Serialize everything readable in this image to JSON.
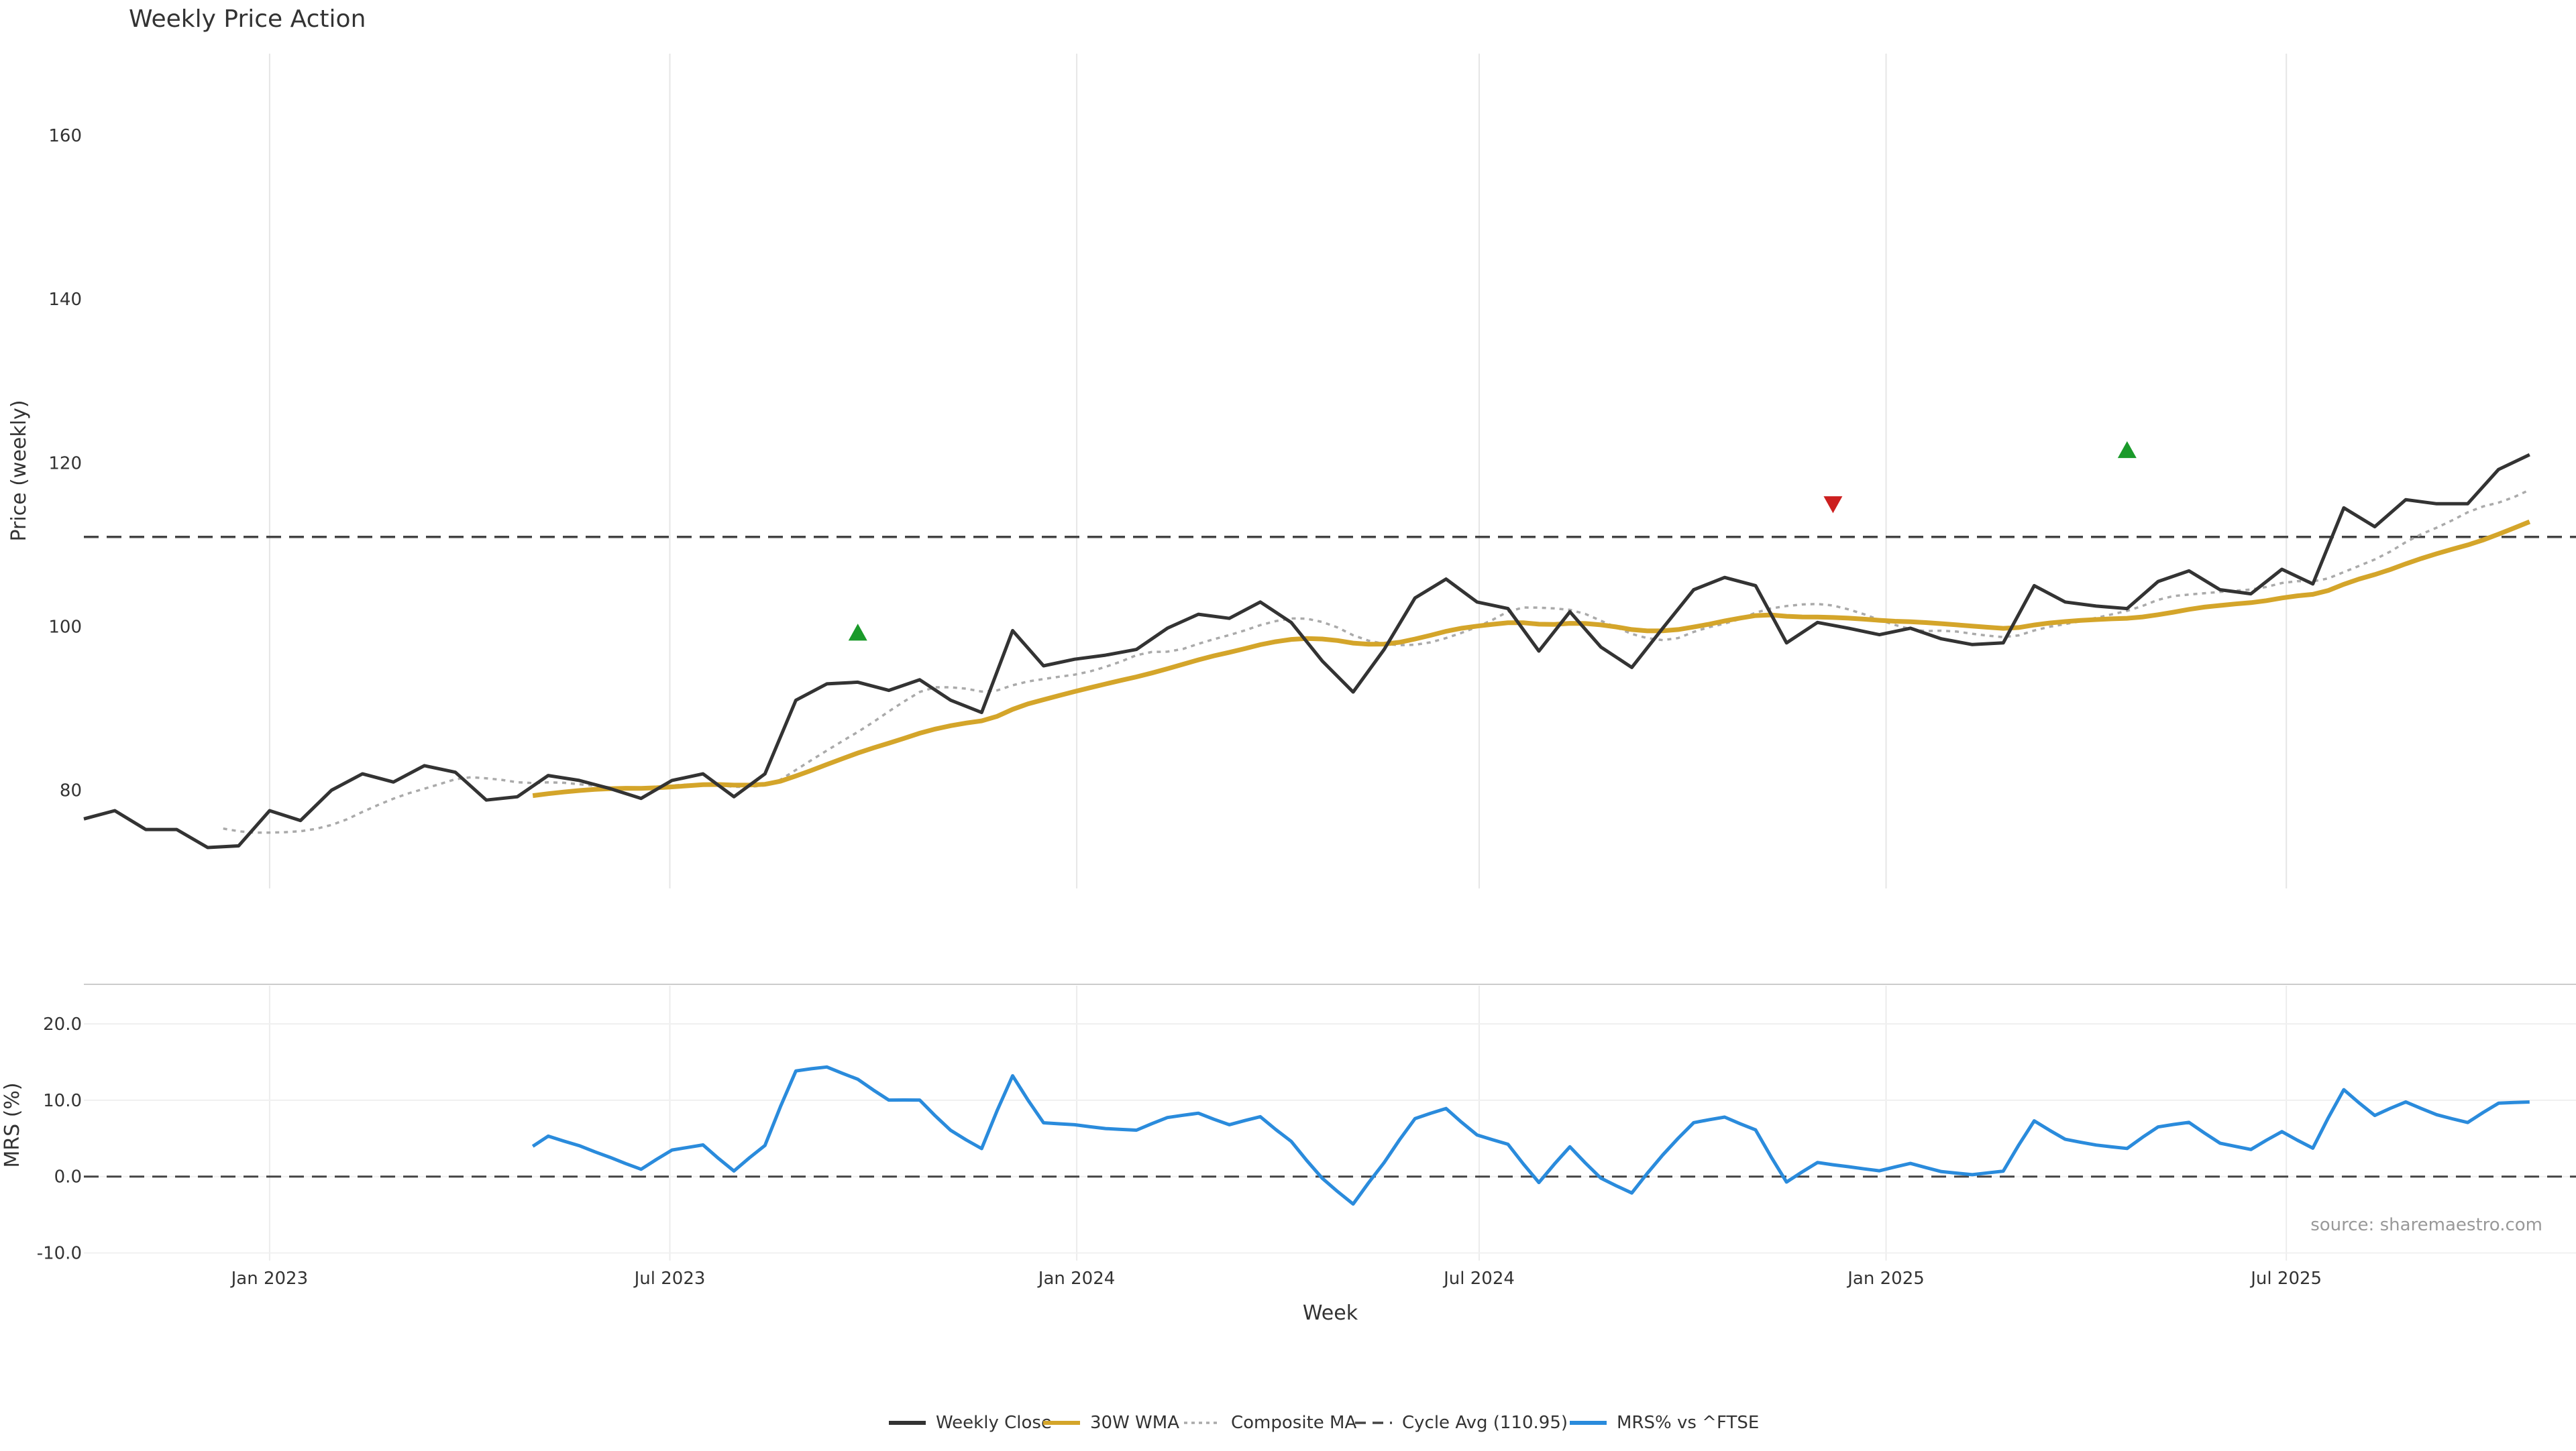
{
  "chart_data": [
    {
      "type": "line",
      "title": "Weekly Price Action",
      "ylabel": "Price (weekly)",
      "ylim": [
        68,
        170
      ],
      "yticks": [
        80,
        100,
        120,
        140,
        160
      ],
      "x_range": [
        "2022-10-09",
        "2025-11-09"
      ],
      "xticks": [
        {
          "date": "2023-01-01",
          "label": "Jan 2023"
        },
        {
          "date": "2023-07-01",
          "label": "Jul 2023"
        },
        {
          "date": "2024-01-01",
          "label": "Jan 2024"
        },
        {
          "date": "2024-07-01",
          "label": "Jul 2024"
        },
        {
          "date": "2025-01-01",
          "label": "Jan 2025"
        },
        {
          "date": "2025-07-01",
          "label": "Jul 2025"
        }
      ],
      "grid": "vertical",
      "reference_line": {
        "name": "Cycle Avg (110.95)",
        "value": 110.95
      },
      "series": [
        {
          "name": "Weekly Close",
          "color": "#333333",
          "points": [
            [
              "2022-10-09",
              76.5
            ],
            [
              "2022-10-23",
              77.5
            ],
            [
              "2022-11-06",
              75.2
            ],
            [
              "2022-11-20",
              75.2
            ],
            [
              "2022-12-04",
              73.0
            ],
            [
              "2022-12-18",
              73.2
            ],
            [
              "2023-01-01",
              77.5
            ],
            [
              "2023-01-15",
              76.3
            ],
            [
              "2023-01-29",
              80.0
            ],
            [
              "2023-02-12",
              82.0
            ],
            [
              "2023-02-26",
              81.0
            ],
            [
              "2023-03-12",
              83.0
            ],
            [
              "2023-03-26",
              82.2
            ],
            [
              "2023-04-09",
              78.8
            ],
            [
              "2023-04-23",
              79.2
            ],
            [
              "2023-05-07",
              81.8
            ],
            [
              "2023-05-21",
              81.2
            ],
            [
              "2023-06-04",
              80.2
            ],
            [
              "2023-06-18",
              79.0
            ],
            [
              "2023-07-02",
              81.2
            ],
            [
              "2023-07-16",
              82.0
            ],
            [
              "2023-07-30",
              79.2
            ],
            [
              "2023-08-13",
              82.0
            ],
            [
              "2023-08-27",
              91.0
            ],
            [
              "2023-09-10",
              93.0
            ],
            [
              "2023-09-24",
              93.2
            ],
            [
              "2023-10-08",
              92.2
            ],
            [
              "2023-10-22",
              93.5
            ],
            [
              "2023-11-05",
              91.0
            ],
            [
              "2023-11-19",
              89.5
            ],
            [
              "2023-12-03",
              99.5
            ],
            [
              "2023-12-17",
              95.2
            ],
            [
              "2023-12-31",
              96.0
            ],
            [
              "2024-01-14",
              96.5
            ],
            [
              "2024-01-28",
              97.2
            ],
            [
              "2024-02-11",
              99.8
            ],
            [
              "2024-02-25",
              101.5
            ],
            [
              "2024-03-10",
              101.0
            ],
            [
              "2024-03-24",
              103.0
            ],
            [
              "2024-04-07",
              100.5
            ],
            [
              "2024-04-21",
              95.8
            ],
            [
              "2024-05-05",
              92.0
            ],
            [
              "2024-05-19",
              97.2
            ],
            [
              "2024-06-02",
              103.5
            ],
            [
              "2024-06-16",
              105.8
            ],
            [
              "2024-06-30",
              103.0
            ],
            [
              "2024-07-14",
              102.2
            ],
            [
              "2024-07-28",
              97.0
            ],
            [
              "2024-08-11",
              101.8
            ],
            [
              "2024-08-25",
              97.5
            ],
            [
              "2024-09-08",
              95.0
            ],
            [
              "2024-09-22",
              99.8
            ],
            [
              "2024-10-06",
              104.5
            ],
            [
              "2024-10-20",
              106.0
            ],
            [
              "2024-11-03",
              105.0
            ],
            [
              "2024-11-17",
              98.0
            ],
            [
              "2024-12-01",
              100.5
            ],
            [
              "2024-12-15",
              99.8
            ],
            [
              "2024-12-29",
              99.0
            ],
            [
              "2025-01-12",
              99.8
            ],
            [
              "2025-01-26",
              98.5
            ],
            [
              "2025-02-09",
              97.8
            ],
            [
              "2025-02-23",
              98.0
            ],
            [
              "2025-03-09",
              105.0
            ],
            [
              "2025-03-23",
              103.0
            ],
            [
              "2025-04-06",
              102.5
            ],
            [
              "2025-04-20",
              102.2
            ],
            [
              "2025-05-04",
              105.5
            ],
            [
              "2025-05-18",
              106.8
            ],
            [
              "2025-06-01",
              104.5
            ],
            [
              "2025-06-15",
              104.0
            ],
            [
              "2025-06-29",
              107.0
            ],
            [
              "2025-07-13",
              105.2
            ],
            [
              "2025-07-27",
              114.5
            ],
            [
              "2025-08-10",
              112.2
            ],
            [
              "2025-08-24",
              115.5
            ],
            [
              "2025-09-07",
              115.0
            ],
            [
              "2025-09-21",
              115.0
            ],
            [
              "2025-10-05",
              119.2
            ],
            [
              "2025-10-19",
              121.0
            ]
          ]
        }
      ]
    },
    {
      "type": "line",
      "title": "",
      "ylabel": "MRS (%)",
      "xlabel": "Week",
      "ylim": [
        -11,
        25
      ],
      "yticks": [
        -10.0,
        0.0,
        10.0,
        20.0
      ],
      "zero_line": 0,
      "annotation": "source: sharemaestro.com",
      "series": [
        {
          "name": "MRS% vs ^FTSE",
          "color": "#2a8bdc"
        }
      ]
    }
  ],
  "legend": {
    "placement": "bottom-center",
    "items": [
      {
        "label": "Weekly Close",
        "style": "solid",
        "color": "#333333"
      },
      {
        "label": "30W WMA",
        "style": "solid",
        "color": "#d4a52a"
      },
      {
        "label": "Composite MA",
        "style": "dotted",
        "color": "#aaaaaa"
      },
      {
        "label": "Cycle Avg (110.95)",
        "style": "dashed",
        "color": "#444444"
      },
      {
        "label": "MRS% vs ^FTSE",
        "style": "solid",
        "color": "#2a8bdc"
      }
    ]
  },
  "markers": [
    {
      "type": "buy",
      "date": "2023-09-24",
      "value": 99.2,
      "color": "#1a9a2a"
    },
    {
      "type": "sell",
      "date": "2024-12-08",
      "value": 115.0,
      "color": "#cc1f1f"
    },
    {
      "type": "buy",
      "date": "2025-04-20",
      "value": 121.5,
      "color": "#1a9a2a"
    }
  ]
}
